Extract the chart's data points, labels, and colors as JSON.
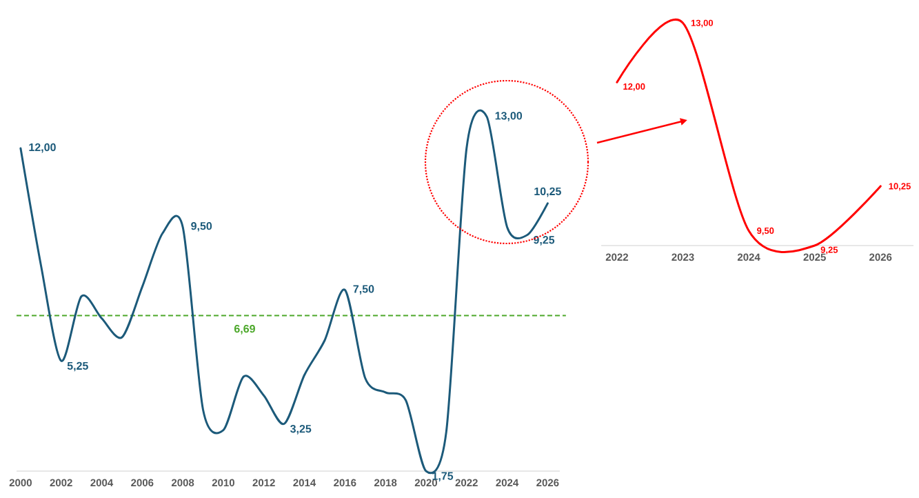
{
  "chart_data": [
    {
      "type": "line",
      "x": [
        2000,
        2001,
        2002,
        2003,
        2004,
        2005,
        2006,
        2007,
        2008,
        2009,
        2010,
        2011,
        2012,
        2013,
        2014,
        2015,
        2016,
        2017,
        2018,
        2019,
        2020,
        2021,
        2022,
        2023,
        2024,
        2025,
        2026
      ],
      "values": [
        12,
        8.3,
        5.25,
        7.3,
        6.6,
        6.0,
        7.6,
        9.3,
        9.5,
        3.7,
        3.05,
        4.75,
        4.15,
        3.25,
        4.8,
        5.9,
        7.5,
        4.7,
        4.25,
        4.0,
        1.75,
        3.0,
        12,
        13,
        9.5,
        9.25,
        10.25
      ],
      "value_labels": [
        "12,00",
        null,
        "5,25",
        null,
        null,
        null,
        null,
        null,
        "9,50",
        null,
        null,
        null,
        null,
        "3,25",
        null,
        null,
        "7,50",
        null,
        null,
        null,
        "1,75",
        null,
        null,
        "13,00",
        null,
        "9,25",
        "10,25"
      ],
      "color": "#1c5a7a",
      "xlim": [
        1999.8,
        2026.6
      ],
      "xticks": [
        2000,
        2002,
        2004,
        2006,
        2008,
        2010,
        2012,
        2014,
        2016,
        2018,
        2020,
        2022,
        2024,
        2026
      ],
      "tick_labels": "x",
      "ref_lines": [
        {
          "axis": "y",
          "value": 6.69,
          "label": "6,69",
          "color": "#4ca82a",
          "line_style": "dashed"
        }
      ]
    },
    {
      "type": "line",
      "x": [
        2022,
        2023,
        2024,
        2025,
        2026
      ],
      "values": [
        12,
        13,
        9.5,
        9.25,
        10.25
      ],
      "value_labels": [
        "12,00",
        "13,00",
        "9,50",
        "9,25",
        "10,25"
      ],
      "color": "#ff0000",
      "xlim": [
        2021.76,
        2026.5
      ],
      "xticks": [
        2022,
        2023,
        2024,
        2025,
        2026
      ],
      "tick_labels": "x"
    }
  ]
}
